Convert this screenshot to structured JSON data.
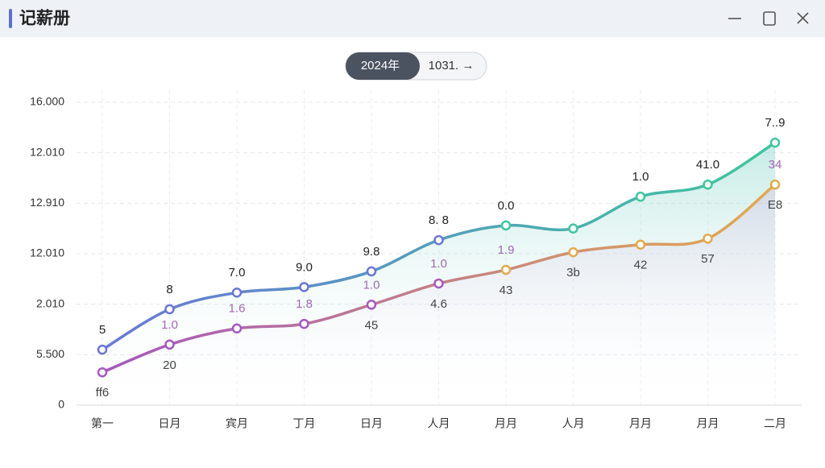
{
  "window": {
    "title": "记薪册",
    "toggle": [
      "2024年",
      "1031. →"
    ]
  },
  "chart_data": {
    "type": "line",
    "categories": [
      "第一",
      "日月",
      "宾月",
      "丁月",
      "日月",
      "人月",
      "月月",
      "人月",
      "月月",
      "月月",
      "二月"
    ],
    "ylim": [
      0,
      6
    ],
    "yticks": [
      {
        "value": 0,
        "label": "0"
      },
      {
        "value": 1,
        "label": "5.500"
      },
      {
        "value": 2,
        "label": "2.010"
      },
      {
        "value": 3,
        "label": "12.010"
      },
      {
        "value": 4,
        "label": "12.910"
      },
      {
        "value": 5,
        "label": "12.010"
      },
      {
        "value": 6,
        "label": "16.000"
      }
    ],
    "grid": true,
    "series": [
      {
        "color": [
          "#6a76d8",
          "#3cc79c"
        ],
        "values": [
          1.1,
          1.9,
          2.23,
          2.34,
          2.65,
          3.27,
          3.56,
          3.5,
          4.13,
          4.37,
          5.2
        ],
        "value_labels": [
          "5",
          "8",
          "7.0",
          "9.0",
          "9.8",
          "8. 8",
          "0.0",
          null,
          "1.0",
          "41.0",
          "7..9"
        ]
      },
      {
        "color": [
          "#a558c0",
          "#e3aa4c"
        ],
        "values": [
          0.65,
          1.2,
          1.52,
          1.61,
          1.99,
          2.41,
          2.68,
          3.03,
          3.18,
          3.3,
          4.37
        ],
        "value_labels": [
          null,
          "1.0",
          "1.6",
          "1.8",
          "1.0",
          "1.0",
          "1.9",
          null,
          null,
          null,
          "34"
        ],
        "lower_labels": [
          "ff6",
          "20",
          null,
          null,
          "45",
          "4.6",
          "43",
          "3b",
          "42",
          "57",
          "E8"
        ]
      }
    ]
  }
}
